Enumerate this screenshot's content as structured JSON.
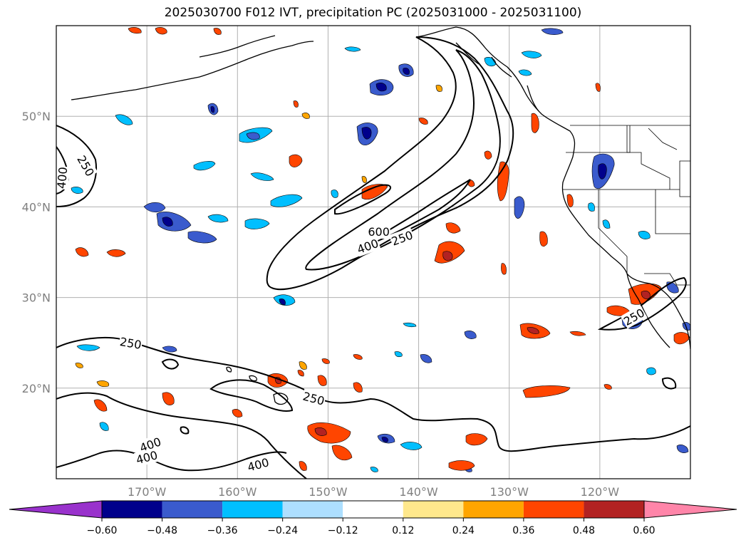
{
  "title": "2025030700 F012 IVT, precipitation PC (2025031000 - 2025031100)",
  "map": {
    "lon_range": [
      -180,
      -110
    ],
    "lat_range": [
      10,
      60
    ],
    "lat_ticks": [
      {
        "value": 20,
        "label": "20°N"
      },
      {
        "value": 30,
        "label": "30°N"
      },
      {
        "value": 40,
        "label": "40°N"
      },
      {
        "value": 50,
        "label": "50°N"
      }
    ],
    "lon_ticks": [
      {
        "value": -170,
        "label": "170°W"
      },
      {
        "value": -160,
        "label": "160°W"
      },
      {
        "value": -150,
        "label": "150°W"
      },
      {
        "value": -140,
        "label": "140°W"
      },
      {
        "value": -130,
        "label": "130°W"
      },
      {
        "value": -120,
        "label": "120°W"
      }
    ],
    "grid": true,
    "ivt_contour_labels": [
      {
        "text": "250",
        "lon": -176.8,
        "lat": 44.5,
        "rot": 60
      },
      {
        "text": "400",
        "lon": -179.3,
        "lat": 43.2,
        "rot": -85
      },
      {
        "text": "600",
        "lon": -144.4,
        "lat": 37.2,
        "rot": 0
      },
      {
        "text": "400",
        "lon": -145.6,
        "lat": 35.6,
        "rot": -20
      },
      {
        "text": "250",
        "lon": -141.8,
        "lat": 36.5,
        "rot": -20
      },
      {
        "text": "250",
        "lon": -171.8,
        "lat": 24.9,
        "rot": 10
      },
      {
        "text": "250",
        "lon": -151.6,
        "lat": 18.8,
        "rot": 15
      },
      {
        "text": "400",
        "lon": -169.6,
        "lat": 13.7,
        "rot": -20
      },
      {
        "text": "400",
        "lon": -170.0,
        "lat": 12.3,
        "rot": -15
      },
      {
        "text": "400",
        "lon": -157.7,
        "lat": 11.5,
        "rot": -15
      },
      {
        "text": "250",
        "lon": -116.2,
        "lat": 27.8,
        "rot": -30
      }
    ]
  },
  "colorbar": {
    "levels": [
      -0.6,
      -0.48,
      -0.36,
      -0.24,
      -0.12,
      0.12,
      0.24,
      0.36,
      0.48,
      0.6
    ],
    "tick_labels": [
      "−0.60",
      "−0.48",
      "−0.36",
      "−0.24",
      "−0.12",
      "0.12",
      "0.24",
      "0.36",
      "0.48",
      "0.60"
    ],
    "under_color": "#9932CC",
    "over_color": "#FF85A9",
    "colors": [
      "#00008B",
      "#3A5BCD",
      "#00BFFF",
      "#ADDFFF",
      "#FFFFFF",
      "#FFE88C",
      "#FFA500",
      "#FF4500",
      "#B22222"
    ],
    "extend": "both"
  },
  "colors": {
    "coast": "#000000",
    "ivt_contour": "#000000",
    "grid": "#b0b0b0"
  }
}
